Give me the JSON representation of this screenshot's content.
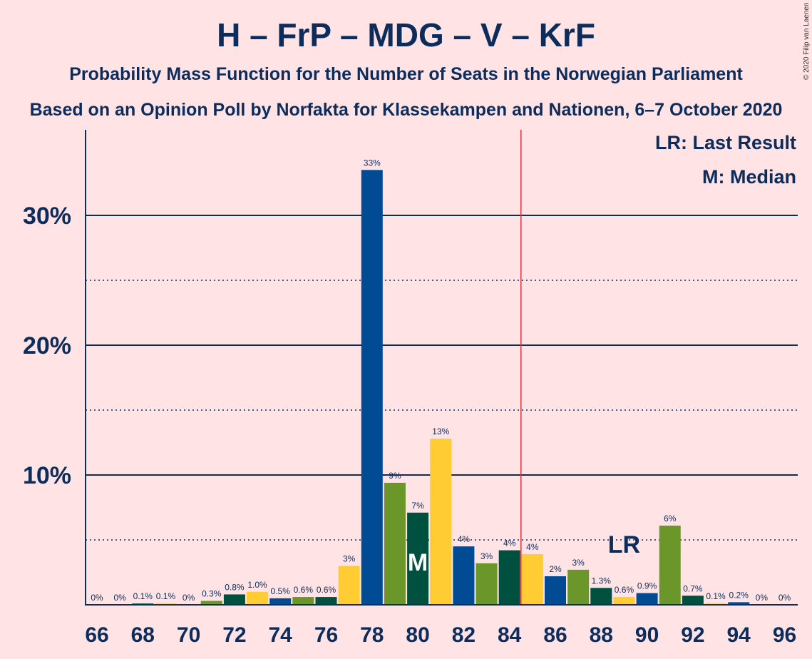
{
  "chart_data": {
    "type": "bar",
    "title": "H – FrP – MDG – V – KrF",
    "subtitle": "Probability Mass Function for the Number of Seats in the Norwegian Parliament",
    "subtitle2": "Based on an Opinion Poll by Norfakta for Klassekampen and Nationen, 6–7 October 2020",
    "copyright": "© 2020 Filip van Laenen",
    "xlabel": "",
    "ylabel": "",
    "ylim": [
      0,
      36.5
    ],
    "yticks": [
      10,
      20,
      30
    ],
    "ytick_labels": [
      "10%",
      "20%",
      "30%"
    ],
    "dotted_gridlines": [
      5,
      15,
      25
    ],
    "xtick_labels": [
      "66",
      "68",
      "70",
      "72",
      "74",
      "76",
      "78",
      "80",
      "82",
      "84",
      "86",
      "88",
      "90",
      "92",
      "94",
      "96"
    ],
    "seats": [
      66,
      67,
      68,
      69,
      70,
      71,
      72,
      73,
      74,
      75,
      76,
      77,
      78,
      79,
      80,
      81,
      82,
      83,
      84,
      85,
      86,
      87,
      88,
      89,
      90,
      91,
      92,
      93,
      94,
      95,
      96
    ],
    "values": [
      0,
      0,
      0.1,
      0.1,
      0,
      0.3,
      0.8,
      1.0,
      0.5,
      0.6,
      0.6,
      3.0,
      33.5,
      9.4,
      7.1,
      12.8,
      4.5,
      3.2,
      4.2,
      3.9,
      2.2,
      2.7,
      1.3,
      0.6,
      0.9,
      6.1,
      0.7,
      0.1,
      0.2,
      0,
      0
    ],
    "value_labels": [
      "0%",
      "0%",
      "0.1%",
      "0.1%",
      "0%",
      "0.3%",
      "0.8%",
      "1.0%",
      "0.5%",
      "0.6%",
      "0.6%",
      "3%",
      "33%",
      "9%",
      "7%",
      "13%",
      "4%",
      "3%",
      "4%",
      "4%",
      "2%",
      "3%",
      "1.3%",
      "0.6%",
      "0.9%",
      "6%",
      "0.7%",
      "0.1%",
      "0.2%",
      "0%",
      "0%"
    ],
    "bar_colors": [
      "#004b93",
      "#6a962a",
      "#00503f",
      "#ffcc33"
    ],
    "majority_line_seat": 84.5,
    "majority_line_color": "#e8312f",
    "median_seat": 80,
    "median_marker": "M",
    "last_result_seat": 89,
    "last_result_marker": "LR",
    "legend": [
      "LR: Last Result",
      "M: Median"
    ],
    "legend_placement": "top-right"
  }
}
